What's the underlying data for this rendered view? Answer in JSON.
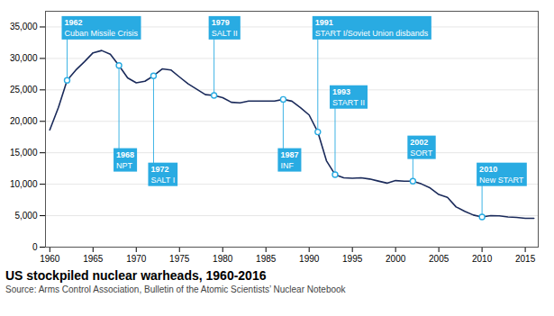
{
  "chart_data": {
    "type": "line",
    "title": "US stockpiled nuclear warheads, 1960-2016",
    "source": "Source: Arms Control Association, Bulletin of the Atomic Scientists’ Nuclear Notebook",
    "x": [
      1960,
      1961,
      1962,
      1963,
      1964,
      1965,
      1966,
      1967,
      1968,
      1969,
      1970,
      1971,
      1972,
      1973,
      1974,
      1975,
      1976,
      1977,
      1978,
      1979,
      1980,
      1981,
      1982,
      1983,
      1984,
      1985,
      1986,
      1987,
      1988,
      1989,
      1990,
      1991,
      1992,
      1993,
      1994,
      1995,
      1996,
      1997,
      1998,
      1999,
      2000,
      2001,
      2002,
      2003,
      2004,
      2005,
      2006,
      2007,
      2008,
      2009,
      2010,
      2011,
      2012,
      2013,
      2014,
      2015,
      2016
    ],
    "series": [
      {
        "color": "#1a2a5a",
        "values": [
          18638,
          22229,
          26512,
          28133,
          29463,
          30893,
          31255,
          30663,
          28884,
          26910,
          26119,
          26365,
          27235,
          28335,
          28170,
          27052,
          25956,
          25099,
          24243,
          24107,
          23764,
          23031,
          22937,
          23228,
          23228,
          23228,
          23228,
          23490,
          23204,
          22174,
          21004,
          18306,
          13731,
          11529,
          11012,
          10953,
          11012,
          10829,
          10501,
          10177,
          10577,
          10491,
          10492,
          10040,
          9400,
          8360,
          7900,
          6390,
          5700,
          5100,
          4802,
          5000,
          4984,
          4804,
          4717,
          4571,
          4571
        ]
      }
    ],
    "markers": {
      "color": "#29abe2",
      "x": [
        1962,
        1968,
        1972,
        1979,
        1987,
        1991,
        1993,
        2002,
        2010
      ],
      "values": [
        26512,
        28884,
        27235,
        24107,
        23490,
        18306,
        11529,
        10492,
        4802
      ]
    },
    "annotation_color": "#29abe2",
    "annotations": [
      {
        "x": 1962,
        "y": 26512,
        "label": "1962",
        "text": "Cuban Missile Crisis"
      },
      {
        "x": 1968,
        "y": 28884,
        "label": "1968",
        "text": "NPT"
      },
      {
        "x": 1972,
        "y": 27235,
        "label": "1972",
        "text": "SALT I"
      },
      {
        "x": 1979,
        "y": 24107,
        "label": "1979",
        "text": "SALT II"
      },
      {
        "x": 1987,
        "y": 23490,
        "label": "1987",
        "text": "INF"
      },
      {
        "x": 1991,
        "y": 18306,
        "label": "1991",
        "text": "START I/Soviet Union disbands"
      },
      {
        "x": 1993,
        "y": 11529,
        "label": "1993",
        "text": "START II"
      },
      {
        "x": 2002,
        "y": 10492,
        "label": "2002",
        "text": "SORT"
      },
      {
        "x": 2010,
        "y": 4802,
        "label": "2010",
        "text": "New START"
      }
    ],
    "xlim": [
      1959.5,
      2016.5
    ],
    "ylim": [
      0,
      37500
    ],
    "xticks": [
      1960,
      1965,
      1970,
      1975,
      1980,
      1985,
      1990,
      1995,
      2000,
      2005,
      2010,
      2015
    ],
    "yticks": [
      0,
      {
        "value": 5000,
        "label": "5,000"
      },
      {
        "value": 10000,
        "label": "10,000"
      },
      {
        "value": 15000,
        "label": "15,000"
      },
      {
        "value": 20000,
        "label": "20,000"
      },
      {
        "value": 25000,
        "label": "25,000"
      },
      {
        "value": 30000,
        "label": "30,000"
      },
      {
        "value": 35000,
        "label": "35,000"
      }
    ],
    "grid": "y"
  }
}
